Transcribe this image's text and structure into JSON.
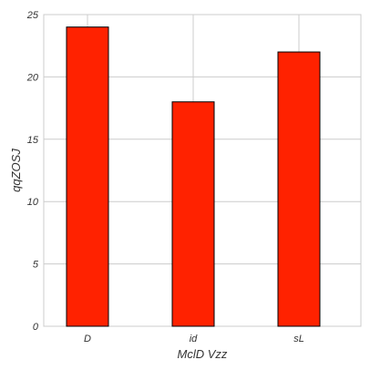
{
  "chart_data": {
    "type": "bar",
    "title": "",
    "xlabel": "MclD Vzz",
    "ylabel": "qqZOSJ",
    "categories": [
      "D",
      "id",
      "sL"
    ],
    "values": [
      24,
      18,
      22
    ],
    "ylim": [
      0,
      25
    ],
    "yticks": [
      0,
      5,
      10,
      15,
      20,
      25
    ],
    "grid": true,
    "bar_color": "#ff2200",
    "bar_edge_color": "#000000"
  }
}
